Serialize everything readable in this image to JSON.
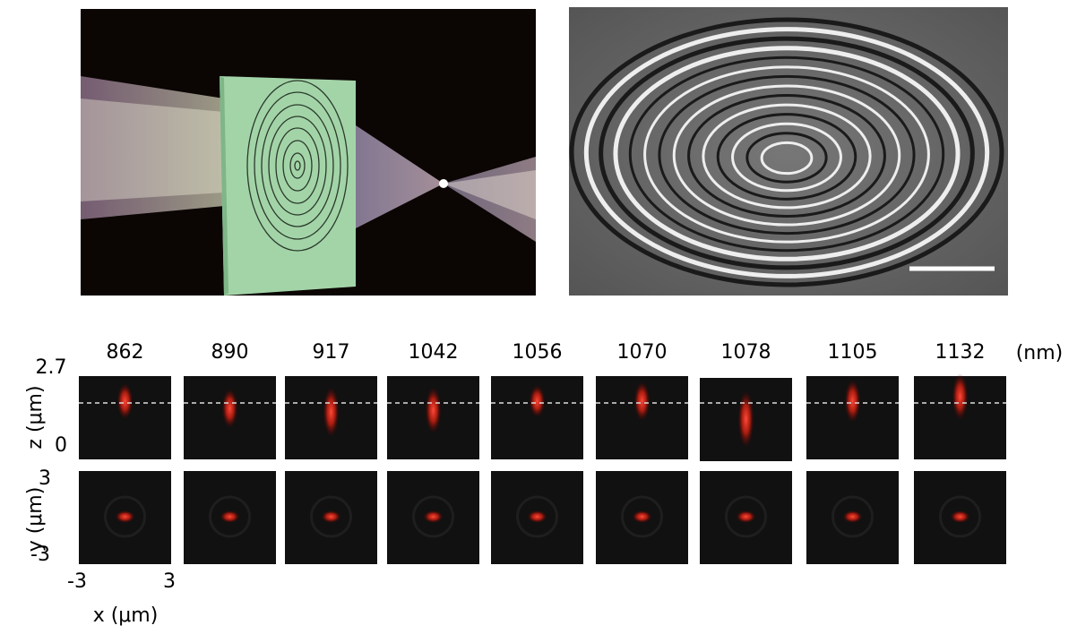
{
  "wavelengths": [
    862,
    890,
    917,
    1042,
    1056,
    1070,
    1078,
    1105,
    1132
  ],
  "wavelength_unit": "(nm)",
  "z_axis": {
    "label": "z (μm)",
    "top": 2.7,
    "bottom": 0
  },
  "y_axis": {
    "label": "y (μm)",
    "top": 3,
    "bottom": -3
  },
  "x_axis": {
    "label": "x (μm)",
    "left": -3,
    "right": 3
  }
}
